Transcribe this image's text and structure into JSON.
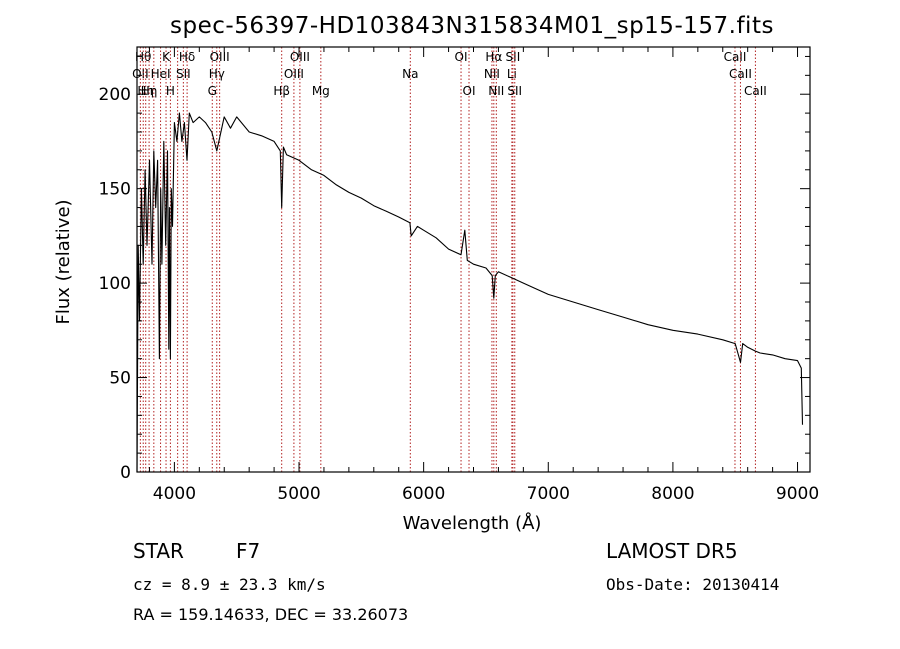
{
  "chart_data": {
    "type": "line",
    "title": "spec-56397-HD103843N315834M01_sp15-157.fits",
    "xlabel": "Wavelength (Å)",
    "ylabel": "Flux (relative)",
    "xlim": [
      3700,
      9100
    ],
    "ylim": [
      0,
      225
    ],
    "xticks": [
      4000,
      5000,
      6000,
      7000,
      8000,
      9000
    ],
    "yticks": [
      0,
      50,
      100,
      150,
      200
    ],
    "grid": false,
    "line_color": "#000000",
    "marker_color": "#b22222",
    "series": [
      {
        "x": [
          3700,
          3710,
          3720,
          3735,
          3750,
          3765,
          3780,
          3800,
          3820,
          3835,
          3850,
          3865,
          3880,
          3890,
          3900,
          3915,
          3930,
          3945,
          3955,
          3960,
          3968,
          3975,
          3985,
          4000,
          4020,
          4040,
          4060,
          4080,
          4101,
          4120,
          4150,
          4200,
          4250,
          4300,
          4340,
          4400,
          4450,
          4500,
          4600,
          4700,
          4800,
          4850,
          4861,
          4875,
          4900,
          5000,
          5100,
          5200,
          5300,
          5400,
          5500,
          5600,
          5700,
          5800,
          5890,
          5900,
          5950,
          6000,
          6100,
          6200,
          6300,
          6330,
          6350,
          6400,
          6500,
          6550,
          6563,
          6575,
          6600,
          6700,
          6800,
          6900,
          7000,
          7200,
          7400,
          7600,
          7800,
          8000,
          8200,
          8400,
          8500,
          8542,
          8560,
          8600,
          8662,
          8700,
          8800,
          8900,
          9000,
          9030,
          9040
        ],
        "y": [
          0,
          120,
          80,
          150,
          110,
          160,
          120,
          165,
          110,
          170,
          140,
          165,
          60,
          150,
          110,
          175,
          120,
          170,
          65,
          140,
          60,
          150,
          130,
          185,
          175,
          190,
          175,
          185,
          165,
          190,
          185,
          188,
          185,
          180,
          170,
          188,
          182,
          188,
          180,
          178,
          175,
          170,
          140,
          172,
          168,
          165,
          160,
          157,
          152,
          148,
          145,
          141,
          138,
          135,
          132,
          125,
          130,
          128,
          124,
          118,
          115,
          128,
          112,
          110,
          108,
          104,
          92,
          104,
          106,
          103,
          100,
          97,
          94,
          90,
          86,
          82,
          78,
          75,
          73,
          70,
          68,
          58,
          68,
          66,
          64,
          63,
          62,
          60,
          59,
          55,
          25
        ]
      }
    ],
    "line_markers": [
      {
        "x": 3727,
        "label": "OII",
        "row": 1
      },
      {
        "x": 3750,
        "label": "Hθ",
        "row": 0
      },
      {
        "x": 3770,
        "label": "Hη",
        "row": 2
      },
      {
        "x": 3797,
        "label": "Hη",
        "row": 2
      },
      {
        "x": 3835,
        "label": "",
        "row": 0
      },
      {
        "x": 3889,
        "label": "HeI",
        "row": 1
      },
      {
        "x": 3933,
        "label": "K",
        "row": 0
      },
      {
        "x": 3968,
        "label": "H",
        "row": 2
      },
      {
        "x": 4026,
        "label": "",
        "row": 0
      },
      {
        "x": 4072,
        "label": "SII",
        "row": 1
      },
      {
        "x": 4102,
        "label": "Hδ",
        "row": 0
      },
      {
        "x": 4304,
        "label": "G",
        "row": 2
      },
      {
        "x": 4340,
        "label": "Hγ",
        "row": 1
      },
      {
        "x": 4363,
        "label": "OIII",
        "row": 0
      },
      {
        "x": 4861,
        "label": "Hβ",
        "row": 2
      },
      {
        "x": 4959,
        "label": "OIII",
        "row": 1
      },
      {
        "x": 5007,
        "label": "OIII",
        "row": 0
      },
      {
        "x": 5175,
        "label": "Mg",
        "row": 2
      },
      {
        "x": 5893,
        "label": "Na",
        "row": 1
      },
      {
        "x": 6300,
        "label": "OI",
        "row": 0
      },
      {
        "x": 6364,
        "label": "OI",
        "row": 2
      },
      {
        "x": 6548,
        "label": "NII",
        "row": 1
      },
      {
        "x": 6563,
        "label": "Hα",
        "row": 0
      },
      {
        "x": 6583,
        "label": "NII",
        "row": 2
      },
      {
        "x": 6708,
        "label": "Li",
        "row": 1
      },
      {
        "x": 6716,
        "label": "SII",
        "row": 0
      },
      {
        "x": 6731,
        "label": "SII",
        "row": 2
      },
      {
        "x": 8498,
        "label": "CaII",
        "row": 0
      },
      {
        "x": 8542,
        "label": "CaII",
        "row": 1
      },
      {
        "x": 8662,
        "label": "CaII",
        "row": 2
      }
    ]
  },
  "info": {
    "class_label": "STAR",
    "subclass": "F7",
    "survey": "LAMOST DR5",
    "cz": "cz = 8.9 ± 23.3 km/s",
    "obs_date": "Obs-Date: 20130414",
    "coords": "RA = 159.14633, DEC =  33.26073"
  }
}
